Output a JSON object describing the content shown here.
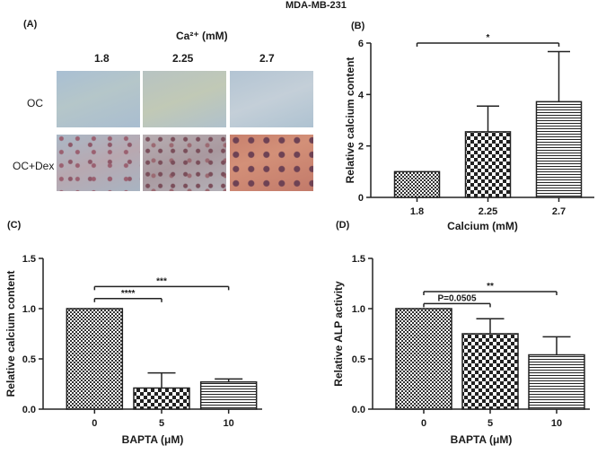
{
  "figure_title": "MDA-MB-231",
  "panel_a": {
    "label": "(A)",
    "header": "Ca²⁺ (mM)",
    "concentrations": [
      "1.8",
      "2.25",
      "2.7"
    ],
    "rows": [
      "OC",
      "OC+Dex"
    ]
  },
  "chart_data": [
    {
      "panel": "(B)",
      "type": "bar",
      "categories": [
        "1.8",
        "2.25",
        "2.7"
      ],
      "values": [
        1.0,
        2.55,
        3.72
      ],
      "errors": [
        0,
        1.0,
        1.95
      ],
      "xlabel": "Calcium (mM)",
      "ylabel": "Relative calcium content",
      "ylim": [
        0,
        6
      ],
      "yticks": [
        "0",
        "2",
        "4",
        "6"
      ],
      "significance": [
        {
          "from": 0,
          "to": 2,
          "label": "*",
          "y": 6.0
        }
      ],
      "patterns": [
        "checker-small",
        "checker-large",
        "hstripes"
      ]
    },
    {
      "panel": "(C)",
      "type": "bar",
      "categories": [
        "0",
        "5",
        "10"
      ],
      "values": [
        1.0,
        0.21,
        0.27
      ],
      "errors": [
        0,
        0.15,
        0.03
      ],
      "xlabel": "BAPTA (μM)",
      "ylabel": "Relative calcium content",
      "ylim": [
        0,
        1.5
      ],
      "yticks": [
        "0.0",
        "0.5",
        "1.0",
        "1.5"
      ],
      "significance": [
        {
          "from": 0,
          "to": 1,
          "label": "****",
          "y": 1.1
        },
        {
          "from": 0,
          "to": 2,
          "label": "***",
          "y": 1.22
        }
      ],
      "patterns": [
        "checker-small",
        "checker-large",
        "hstripes"
      ]
    },
    {
      "panel": "(D)",
      "type": "bar",
      "categories": [
        "0",
        "5",
        "10"
      ],
      "values": [
        1.0,
        0.75,
        0.54
      ],
      "errors": [
        0,
        0.15,
        0.18
      ],
      "xlabel": "BAPTA (μM)",
      "ylabel": "Relative ALP activity",
      "ylim": [
        0,
        1.5
      ],
      "yticks": [
        "0.0",
        "0.5",
        "1.0",
        "1.5"
      ],
      "significance": [
        {
          "from": 0,
          "to": 1,
          "label": "P=0.0505",
          "y": 1.05
        },
        {
          "from": 0,
          "to": 2,
          "label": "**",
          "y": 1.17
        }
      ],
      "patterns": [
        "checker-small",
        "checker-large",
        "hstripes"
      ]
    }
  ]
}
